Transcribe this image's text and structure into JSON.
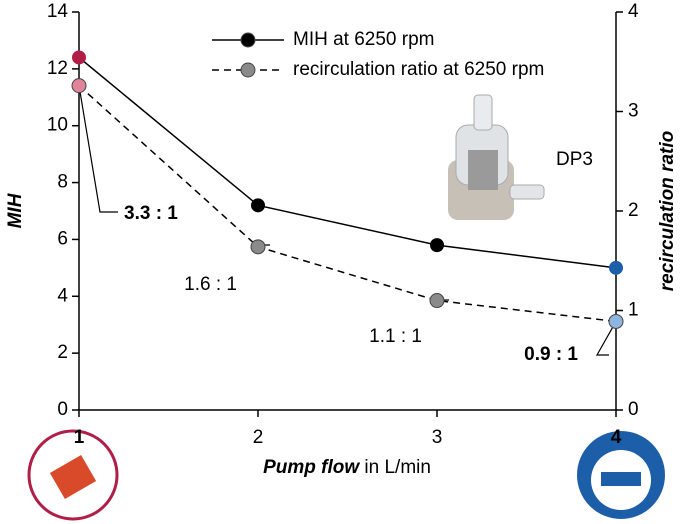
{
  "chart_data": {
    "type": "line",
    "x_label": "Pump flow",
    "x_label_unit": "in L/min",
    "y_label": "MIH",
    "y2_label": "recirculation ratio",
    "x": [
      1,
      2,
      3,
      4
    ],
    "xlim": [
      1,
      4
    ],
    "xticks": [
      1,
      2,
      3,
      4
    ],
    "ylim": [
      0,
      14
    ],
    "yticks": [
      0,
      2,
      4,
      6,
      8,
      10,
      12,
      14
    ],
    "y2lim": [
      0,
      4
    ],
    "y2ticks": [
      0,
      1,
      2,
      3,
      4
    ],
    "series": [
      {
        "name": "MIH at 6250 rpm",
        "color": "#000000",
        "dash": false,
        "values": [
          12.4,
          7.2,
          5.8,
          5.0
        ],
        "marker_colors": [
          "#b01e48",
          "#000000",
          "#000000",
          "#1d5ea8"
        ]
      },
      {
        "name": "recirculation ratio at 6250 rpm",
        "color": "#000000",
        "dash": true,
        "axis": "y2",
        "values": [
          3.26,
          1.64,
          1.1,
          0.89
        ],
        "value_labels": [
          "3.3 : 1",
          "1.6 : 1",
          "1.1 : 1",
          "0.9 : 1"
        ],
        "label_colors": [
          "#b01e48",
          "#000000",
          "#000000",
          "#1d5ea8"
        ],
        "marker_colors": [
          "#e0849c",
          "#8a8a8a",
          "#8a8a8a",
          "#8fb6e2"
        ]
      }
    ],
    "tick_colors": [
      "#b01e48",
      "#000000",
      "#000000",
      "#1d5ea8"
    ],
    "annotation": "DP3",
    "legend": "top"
  }
}
